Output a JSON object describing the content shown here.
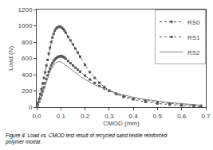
{
  "chart_data": {
    "type": "line",
    "xlabel": "CMOD (mm)",
    "ylabel": "Load (N)",
    "caption": "Figure 4. Load vs. CMOD test result of recycled sand textile reinforced\npolymer mortar.",
    "x": [
      0.0,
      0.005,
      0.01,
      0.015,
      0.02,
      0.025,
      0.03,
      0.035,
      0.04,
      0.045,
      0.05,
      0.055,
      0.06,
      0.065,
      0.07,
      0.075,
      0.08,
      0.085,
      0.09,
      0.095,
      0.1,
      0.105,
      0.11,
      0.115,
      0.12,
      0.13,
      0.14,
      0.15,
      0.16,
      0.17,
      0.18,
      0.2,
      0.22,
      0.24,
      0.26,
      0.28,
      0.3,
      0.33,
      0.36,
      0.4,
      0.45,
      0.5,
      0.55,
      0.6,
      0.65,
      0.68
    ],
    "series": [
      {
        "name": "RS0",
        "color": "#555555",
        "line_style": "dotted",
        "marker": "square",
        "values": [
          0,
          50,
          100,
          160,
          220,
          290,
          360,
          430,
          510,
          580,
          660,
          730,
          800,
          855,
          900,
          940,
          965,
          978,
          985,
          990,
          985,
          975,
          960,
          940,
          915,
          865,
          820,
          770,
          720,
          670,
          620,
          520,
          430,
          360,
          300,
          248,
          205,
          160,
          125,
          95,
          65,
          45,
          30,
          20,
          10,
          5
        ]
      },
      {
        "name": "RS1",
        "color": "#555555",
        "line_style": "dotted",
        "marker": "square",
        "values": [
          0,
          30,
          65,
          105,
          148,
          195,
          245,
          295,
          345,
          390,
          435,
          475,
          510,
          540,
          565,
          585,
          600,
          612,
          620,
          625,
          628,
          625,
          618,
          608,
          595,
          568,
          540,
          512,
          486,
          460,
          436,
          388,
          340,
          298,
          260,
          228,
          200,
          165,
          135,
          108,
          82,
          62,
          46,
          35,
          25,
          18
        ]
      },
      {
        "name": "RS2",
        "color": "#888888",
        "line_style": "solid",
        "values": [
          0,
          28,
          58,
          95,
          135,
          178,
          222,
          268,
          315,
          360,
          400,
          435,
          465,
          492,
          515,
          532,
          545,
          553,
          558,
          560,
          558,
          550,
          540,
          528,
          514,
          490,
          466,
          442,
          420,
          398,
          378,
          340,
          305,
          275,
          248,
          225,
          204,
          175,
          150,
          122,
          95,
          74,
          57,
          43,
          32,
          24
        ]
      }
    ],
    "xlim": [
      0.0,
      0.7
    ],
    "ylim": [
      0,
      1200
    ],
    "xticks": [
      {
        "value": 0.0,
        "label": "0.0"
      },
      0.1,
      0.2,
      0.3,
      0.4,
      0.5,
      0.6,
      0.7
    ],
    "yticks": [
      0,
      200,
      400,
      600,
      800,
      1000,
      1200
    ],
    "grid": false,
    "legend": "upper right"
  }
}
